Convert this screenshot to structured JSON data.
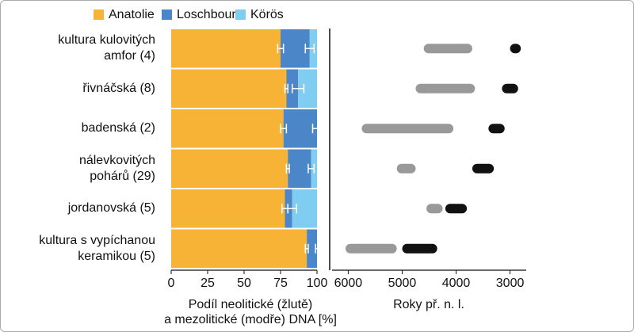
{
  "chart_data": [
    {
      "type": "stacked_bar_h",
      "categories": [
        "kultura kulovitých\namfor (4)",
        "řivnáčská (8)",
        "badenská (2)",
        "nálevkovitých\npohárů (29)",
        "jordanovská (5)",
        "kultura s vypíchanou\nkeramikou (5)"
      ],
      "series": [
        {
          "name": "Anatolie",
          "color": "#f6b336",
          "values": [
            75,
            79,
            77,
            80,
            78,
            93
          ],
          "errors": [
            2,
            1,
            2,
            1,
            2,
            1
          ]
        },
        {
          "name": "Loschbour",
          "color": "#4a86c8",
          "values": [
            20,
            8,
            23,
            16,
            5,
            7
          ],
          "errors": [
            3,
            4,
            3,
            2,
            3,
            1
          ]
        },
        {
          "name": "Körös",
          "color": "#7fcdf0",
          "values": [
            5,
            13,
            0,
            4,
            17,
            0
          ]
        }
      ],
      "xlim": [
        0,
        100
      ],
      "xticks": [
        0,
        25,
        50,
        75,
        100
      ],
      "xlabel": "Podíl neolitické (žlutě)\na mezolitické (modře) DNA [%]"
    },
    {
      "type": "range",
      "series": [
        {
          "color": "#999999",
          "values": [
            [
              4600,
              3700
            ],
            [
              4750,
              3650
            ],
            [
              5750,
              4050
            ],
            [
              5100,
              4750
            ],
            [
              4550,
              4250
            ],
            [
              6050,
              5100
            ]
          ]
        },
        {
          "color": "#111111",
          "values": [
            [
              3000,
              2800
            ],
            [
              3150,
              2850
            ],
            [
              3400,
              3100
            ],
            [
              3700,
              3300
            ],
            [
              4200,
              3800
            ],
            [
              5000,
              4350
            ]
          ]
        }
      ],
      "xlim": [
        6300,
        2700
      ],
      "xticks": [
        6000,
        5000,
        4000,
        3000
      ],
      "xlabel": "Roky př. n. l."
    }
  ]
}
